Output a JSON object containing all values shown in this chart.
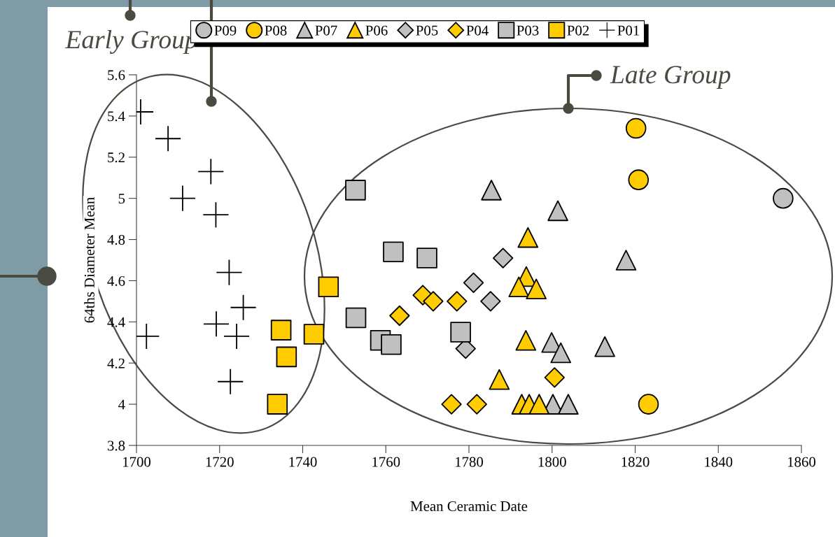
{
  "chart_data": {
    "type": "scatter",
    "xlabel": "Mean Ceramic Date",
    "ylabel": "64ths Diameter Mean",
    "xlim": [
      1700,
      1860
    ],
    "xticks": [
      1700,
      1720,
      1740,
      1760,
      1780,
      1800,
      1820,
      1840,
      1860
    ],
    "ylim": [
      3.8,
      5.6
    ],
    "yticks": [
      3.8,
      4,
      4.2,
      4.4,
      4.6,
      4.8,
      5,
      5.2,
      5.4,
      5.6
    ],
    "grid": false,
    "legend": "top",
    "annotations": [
      "Early Group",
      "Late Group"
    ],
    "series": [
      {
        "name": "P09",
        "color": "#c0c0c0",
        "marker": "circle",
        "x": [
          1855.6
        ],
        "values": [
          5.0
        ]
      },
      {
        "name": "P08",
        "color": "#ffcc00",
        "marker": "circle",
        "x": [
          1820.2,
          1820.8,
          1823.2
        ],
        "values": [
          5.34,
          5.09,
          4.0
        ]
      },
      {
        "name": "P07",
        "color": "#c0c0c0",
        "marker": "triangle",
        "x": [
          1785.4,
          1801.4,
          1817.8,
          1799.9,
          1802.1,
          1812.7,
          1800.2,
          1803.9
        ],
        "values": [
          5.04,
          4.94,
          4.7,
          4.3,
          4.25,
          4.28,
          4.0,
          4.0
        ]
      },
      {
        "name": "P06",
        "color": "#ffcc00",
        "marker": "triangle",
        "x": [
          1794.2,
          1793.8,
          1792.0,
          1796.2,
          1793.7,
          1787.3,
          1792.7,
          1794.5,
          1796.9
        ],
        "values": [
          4.81,
          4.62,
          4.57,
          4.56,
          4.31,
          4.12,
          4.0,
          4.0,
          4.0
        ]
      },
      {
        "name": "P05",
        "color": "#c0c0c0",
        "marker": "diamond",
        "x": [
          1788.2,
          1781.1,
          1785.2,
          1779.2
        ],
        "values": [
          4.71,
          4.59,
          4.5,
          4.27
        ]
      },
      {
        "name": "P04",
        "color": "#ffcc00",
        "marker": "diamond",
        "x": [
          1768.9,
          1771.4,
          1777.1,
          1763.3,
          1775.8,
          1781.9,
          1800.6
        ],
        "values": [
          4.53,
          4.5,
          4.5,
          4.43,
          4.0,
          4.0,
          4.13
        ]
      },
      {
        "name": "P03",
        "color": "#c0c0c0",
        "marker": "square",
        "x": [
          1752.7,
          1761.8,
          1769.9,
          1752.8,
          1758.7,
          1761.3,
          1778.0
        ],
        "values": [
          5.04,
          4.74,
          4.71,
          4.42,
          4.31,
          4.29,
          4.35
        ]
      },
      {
        "name": "P02",
        "color": "#ffcc00",
        "marker": "square",
        "x": [
          1746.2,
          1734.8,
          1742.7,
          1736.1,
          1733.9
        ],
        "values": [
          4.57,
          4.36,
          4.34,
          4.23,
          4.0
        ]
      },
      {
        "name": "P01",
        "color": "#000000",
        "marker": "cross",
        "x": [
          1701.0,
          1707.6,
          1717.9,
          1711.1,
          1719.1,
          1722.3,
          1725.7,
          1719.2,
          1724.1,
          1702.4,
          1722.6
        ],
        "values": [
          5.42,
          5.29,
          5.13,
          5.0,
          4.92,
          4.64,
          4.47,
          4.39,
          4.33,
          4.33,
          4.11
        ]
      }
    ]
  }
}
